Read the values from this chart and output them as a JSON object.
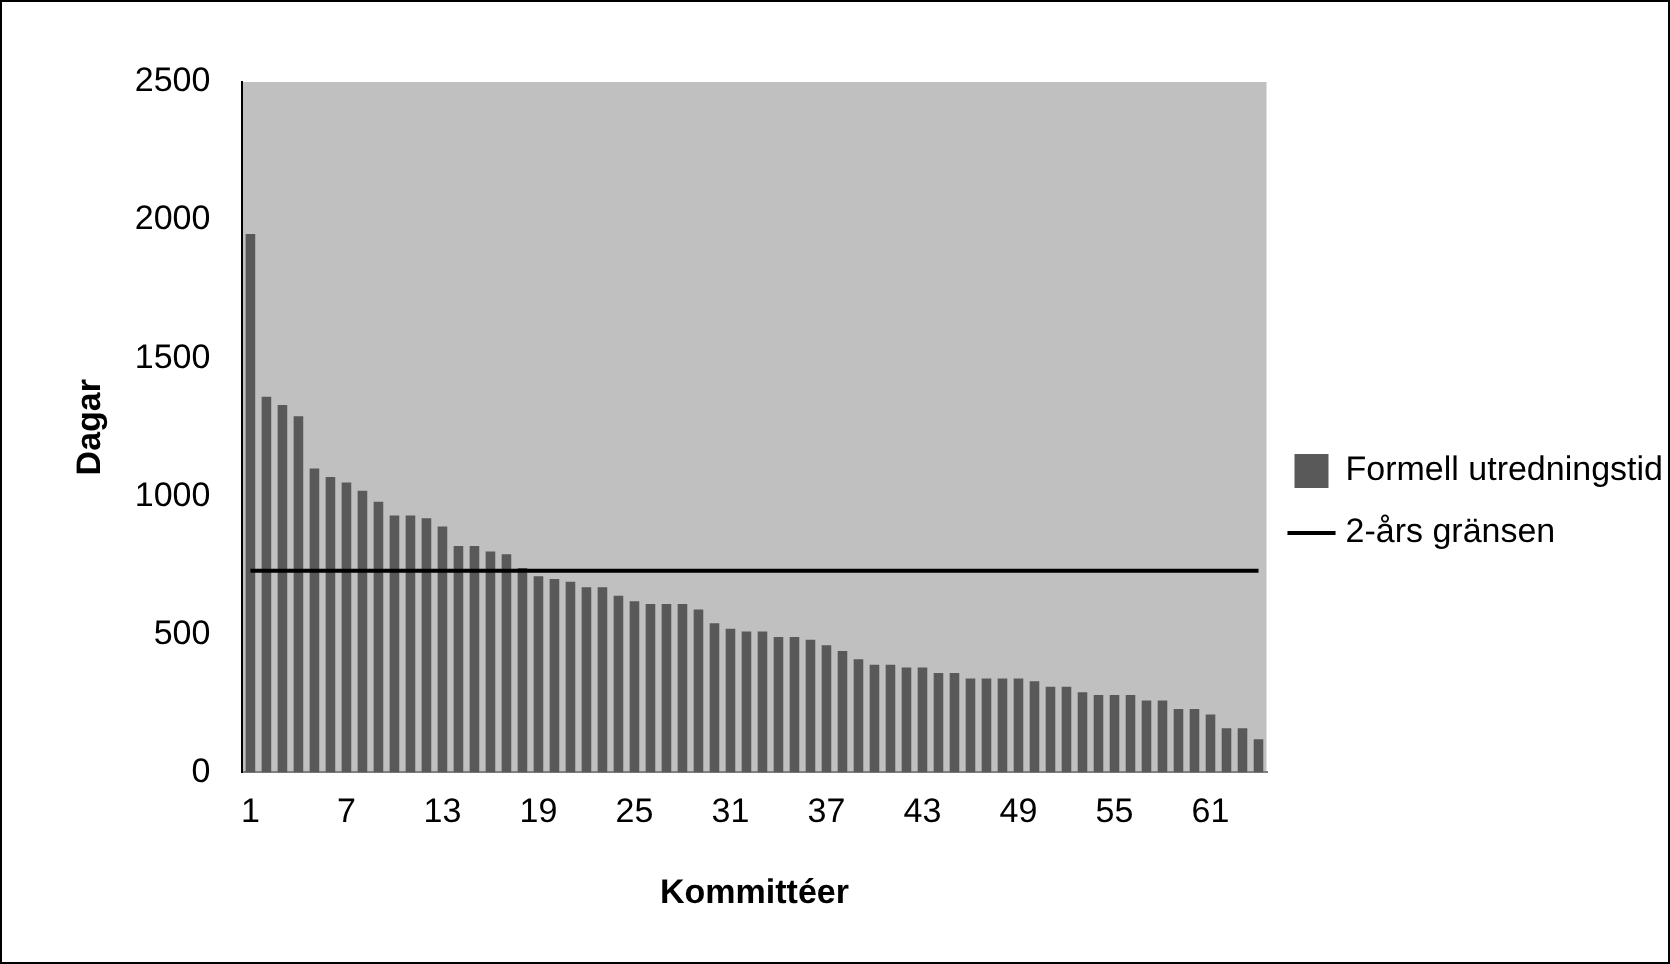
{
  "chart_data": {
    "type": "bar",
    "xlabel": "Kommittéer",
    "ylabel": "Dagar",
    "categories": [
      "1",
      null,
      null,
      null,
      null,
      null,
      "7",
      null,
      null,
      null,
      null,
      null,
      "13",
      null,
      null,
      null,
      null,
      null,
      "19",
      null,
      null,
      null,
      null,
      null,
      "25",
      null,
      null,
      null,
      null,
      null,
      "31",
      null,
      null,
      null,
      null,
      null,
      "37",
      null,
      null,
      null,
      null,
      null,
      "43",
      null,
      null,
      null,
      null,
      null,
      "49",
      null,
      null,
      null,
      null,
      null,
      "55",
      null,
      null,
      null,
      null,
      null,
      "61",
      null,
      null,
      null
    ],
    "series": [
      {
        "name": "Formell utredningstid",
        "color": "#595959",
        "values": [
          1950,
          1360,
          1330,
          1290,
          1100,
          1070,
          1050,
          1020,
          980,
          930,
          930,
          920,
          890,
          820,
          820,
          800,
          790,
          740,
          710,
          700,
          690,
          670,
          670,
          640,
          620,
          610,
          610,
          610,
          590,
          540,
          520,
          510,
          510,
          490,
          490,
          480,
          460,
          440,
          410,
          390,
          390,
          380,
          380,
          360,
          360,
          340,
          340,
          340,
          340,
          330,
          310,
          310,
          290,
          280,
          280,
          280,
          260,
          260,
          230,
          230,
          210,
          160,
          160,
          120
        ]
      },
      {
        "name": "2-års gränsen",
        "type": "line",
        "color": "#000000",
        "values": [
          730,
          730,
          730,
          730,
          730,
          730,
          730,
          730,
          730,
          730,
          730,
          730,
          730,
          730,
          730,
          730,
          730,
          730,
          730,
          730,
          730,
          730,
          730,
          730,
          730,
          730,
          730,
          730,
          730,
          730,
          730,
          730,
          730,
          730,
          730,
          730,
          730,
          730,
          730,
          730,
          730,
          730,
          730,
          730,
          730,
          730,
          730,
          730,
          730,
          730,
          730,
          730,
          730,
          730,
          730,
          730,
          730,
          730,
          730,
          730,
          730,
          730,
          730,
          730
        ]
      }
    ],
    "ylim": [
      0,
      2500
    ],
    "yticks": [
      0,
      500,
      1000,
      1500,
      2000,
      2500
    ],
    "grid": false,
    "legend": "right"
  }
}
